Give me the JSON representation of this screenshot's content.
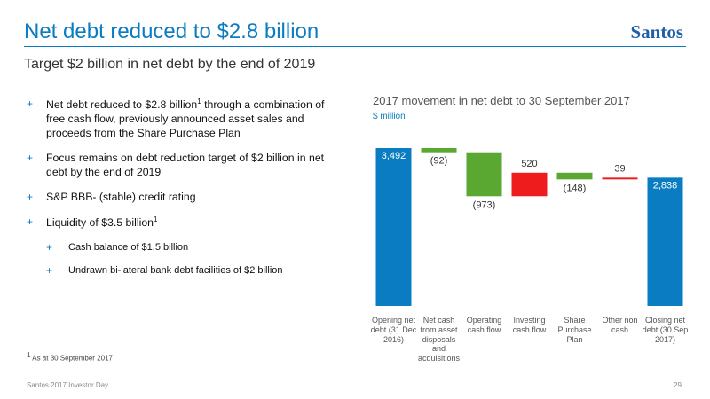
{
  "header": {
    "title": "Net debt reduced to $2.8 billion",
    "logo": "Santos",
    "subtitle": "Target $2 billion in net debt by the end of 2019"
  },
  "bullets": [
    {
      "text": "Net debt reduced to $2.8 billion",
      "sup": "1",
      "text_after": " through a combination of free cash flow, previously announced asset sales and proceeds from the Share Purchase Plan"
    },
    {
      "text": "Focus remains on debt reduction target of $2 billion in net debt by the end of 2019"
    },
    {
      "text": "S&P BBB- (stable) credit rating"
    },
    {
      "text": "Liquidity of $3.5 billion",
      "sup": "1",
      "sub_bullets": [
        "Cash balance of $1.5 billion",
        "Undrawn bi-lateral bank debt facilities of $2 billion"
      ]
    }
  ],
  "footnote": {
    "sup": "1",
    "text": " As at 30 September 2017"
  },
  "footer": {
    "left": "Santos 2017 Investor Day",
    "page": "29"
  },
  "chart_data": {
    "type": "waterfall",
    "title": "2017 movement in net debt to 30 September 2017",
    "subtitle": "$ million",
    "categories": [
      "Opening net debt (31 Dec 2016)",
      "Net cash from asset disposals and acquisitions",
      "Operating cash flow",
      "Investing cash flow",
      "Share Purchase Plan",
      "Other non cash",
      "Closing net debt (30 Sep 2017)"
    ],
    "values": [
      3492,
      -92,
      -973,
      520,
      -148,
      39,
      2838
    ],
    "value_labels": [
      "3,492",
      "(92)",
      "(973)",
      "520",
      "(148)",
      "39",
      "2,838"
    ],
    "colors": [
      "#0a7cc1",
      "#5aa832",
      "#5aa832",
      "#ee1c1c",
      "#5aa832",
      "#ee1c1c",
      "#0a7cc1"
    ]
  }
}
